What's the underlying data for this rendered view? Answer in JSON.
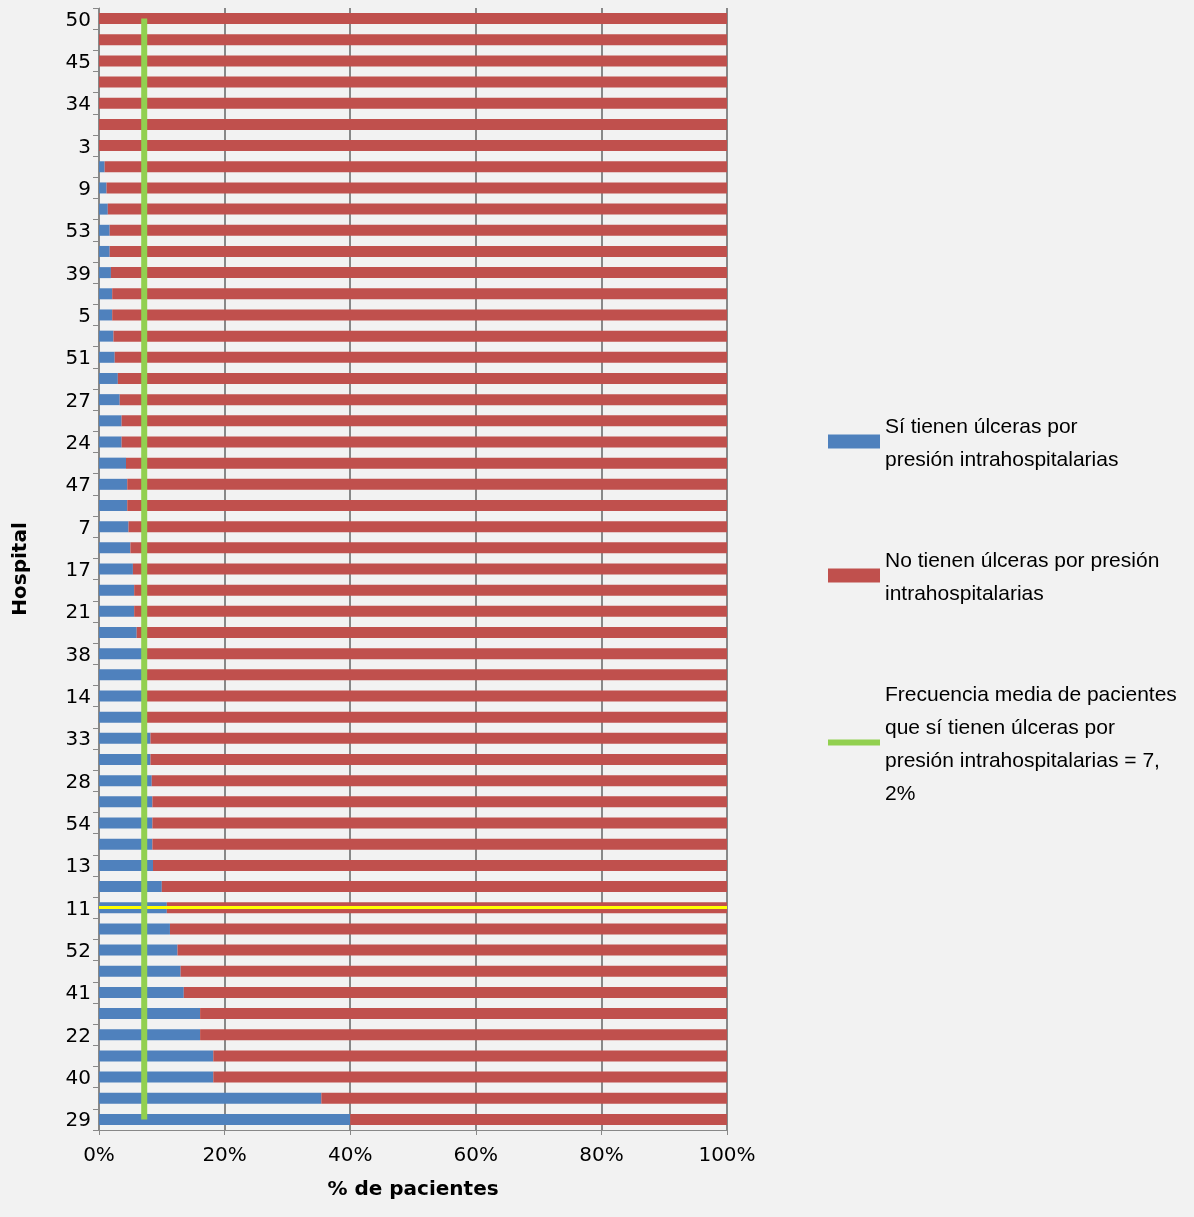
{
  "chart_data": {
    "type": "bar",
    "orientation": "horizontal",
    "stacked": true,
    "xlabel": "% de pacientes",
    "ylabel": "Hospital",
    "categories": [
      "50",
      null,
      "45",
      null,
      "34",
      null,
      "3",
      null,
      "9",
      null,
      "53",
      null,
      "39",
      null,
      "5",
      null,
      "51",
      null,
      "27",
      null,
      "24",
      null,
      "47",
      null,
      "7",
      null,
      "17",
      null,
      "21",
      null,
      "38",
      null,
      "14",
      null,
      "33",
      null,
      "28",
      null,
      "54",
      null,
      "13",
      null,
      "11",
      null,
      "52",
      null,
      "41",
      null,
      "22",
      null,
      "40",
      null,
      "29"
    ],
    "series": [
      {
        "name": "Sí tienen úlceras por presión intrahospitalarias",
        "color": "#4f81bd",
        "values": [
          0,
          0,
          0,
          0,
          0,
          0,
          0,
          0.9,
          1.2,
          1.4,
          1.7,
          1.7,
          1.9,
          2.1,
          2.1,
          2.3,
          2.5,
          3.0,
          3.3,
          3.6,
          3.6,
          4.3,
          4.5,
          4.5,
          4.7,
          5.0,
          5.4,
          5.6,
          5.6,
          6.0,
          7.0,
          7.0,
          7.0,
          7.0,
          8.2,
          8.2,
          8.4,
          8.5,
          8.5,
          8.5,
          8.6,
          10.0,
          10.8,
          11.3,
          12.5,
          13.0,
          13.5,
          16.1,
          16.1,
          18.2,
          18.2,
          35.4,
          40.0
        ]
      },
      {
        "name": "No tienen úlceras por presión intrahospitalarias",
        "color": "#c0504d",
        "values": [
          100,
          100,
          100,
          100,
          100,
          100,
          100,
          99.1,
          98.8,
          98.6,
          98.3,
          98.3,
          98.1,
          97.9,
          97.9,
          97.7,
          97.5,
          97.0,
          96.7,
          96.4,
          96.4,
          95.7,
          95.5,
          95.5,
          95.3,
          95.0,
          94.6,
          94.4,
          94.4,
          94.0,
          93.0,
          93.0,
          93.0,
          93.0,
          91.8,
          91.8,
          91.6,
          91.5,
          91.5,
          91.5,
          91.4,
          90.0,
          89.2,
          88.7,
          87.5,
          87.0,
          86.5,
          83.9,
          83.9,
          81.8,
          81.8,
          64.6,
          60.0
        ]
      },
      {
        "name": "Frecuencia media de pacientes que sí tienen úlceras por presión intrahospitalarias = 7,2%",
        "type": "line",
        "color": "#92d050",
        "values": [
          7.2,
          7.2,
          7.2,
          7.2,
          7.2,
          7.2,
          7.2,
          7.2,
          7.2,
          7.2,
          7.2,
          7.2,
          7.2,
          7.2,
          7.2,
          7.2,
          7.2,
          7.2,
          7.2,
          7.2,
          7.2,
          7.2,
          7.2,
          7.2,
          7.2,
          7.2,
          7.2,
          7.2,
          7.2,
          7.2,
          7.2,
          7.2,
          7.2,
          7.2,
          7.2,
          7.2,
          7.2,
          7.2,
          7.2,
          7.2,
          7.2,
          7.2,
          7.2,
          7.2,
          7.2,
          7.2,
          7.2,
          7.2,
          7.2,
          7.2,
          7.2,
          7.2,
          7.2
        ]
      }
    ],
    "xlim": [
      0,
      100
    ],
    "xticks": [
      {
        "value": 0,
        "label": "0%"
      },
      {
        "value": 20,
        "label": "20%"
      },
      {
        "value": 40,
        "label": "40%"
      },
      {
        "value": 60,
        "label": "60%"
      },
      {
        "value": 80,
        "label": "80%"
      },
      {
        "value": 100,
        "label": "100%"
      }
    ],
    "ref_lines": [
      {
        "axis": "y",
        "value": "11",
        "color": "#ffff00"
      }
    ],
    "grid": "x",
    "legend": "right",
    "marker": "none"
  }
}
